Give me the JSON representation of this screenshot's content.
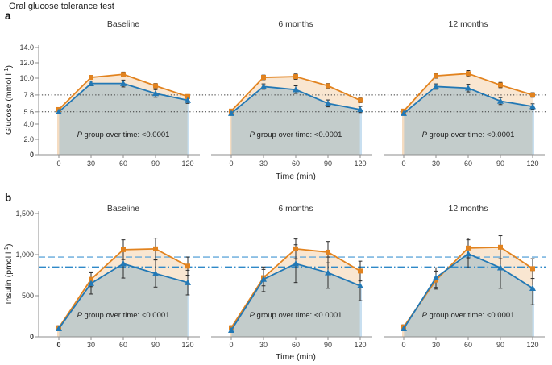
{
  "figure": {
    "title": "Oral glucose tolerance test"
  },
  "x_axis": {
    "label": "Time (min)",
    "values": [
      0,
      30,
      60,
      90,
      120
    ],
    "ticks": [
      "0",
      "30",
      "60",
      "90",
      "120"
    ]
  },
  "colors": {
    "orange": "#E2831F",
    "blue": "#2278B5",
    "area_orange": "#F9E6D1",
    "area_overlap": "#C3CCCB",
    "edge_left": "#F5DCC1",
    "edge_right": "#C8DFF0",
    "ref_dotted": "#3A3A3A",
    "ref_dashed": "#64A9DB",
    "ref_dashdot": "#2F89C8",
    "axis": "#8E8E8E",
    "error_bar": "#2B2B2B",
    "text": "#333333"
  },
  "chart_data": [
    {
      "type": "line",
      "row_label": "a",
      "ylabel": {
        "pre": "Glucose (mmol l",
        "sup": "-1",
        "post": ")"
      },
      "ylim": [
        0,
        14
      ],
      "yticks": [
        {
          "value": 0,
          "label": "0",
          "bold": true
        },
        {
          "value": 2,
          "label": "2.0"
        },
        {
          "value": 4,
          "label": "4.0"
        },
        {
          "value": 5.6,
          "label": "5.6"
        },
        {
          "value": 7.8,
          "label": "7.8"
        },
        {
          "value": 10,
          "label": "10.0"
        },
        {
          "value": 12,
          "label": "12.0"
        },
        {
          "value": 14,
          "label": "14.0"
        }
      ],
      "ref_lines": [
        {
          "value": 7.8,
          "style": "dotted"
        },
        {
          "value": 5.6,
          "style": "dotted"
        }
      ],
      "x_bold_zero_panels": [],
      "p_note": {
        "italic": "P",
        "rest": " group over time: <0.0001"
      },
      "panels": [
        {
          "title": "Baseline",
          "series": [
            {
              "name": "orange-squares",
              "color_key": "orange",
              "marker": "square",
              "values": [
                5.9,
                10.1,
                10.5,
                9.0,
                7.6
              ],
              "err": [
                0.2,
                0.25,
                0.3,
                0.3,
                0.25
              ]
            },
            {
              "name": "blue-triangles",
              "color_key": "blue",
              "marker": "triangle",
              "values": [
                5.6,
                9.3,
                9.3,
                8.0,
                7.1
              ],
              "err": [
                0.2,
                0.3,
                0.45,
                0.5,
                0.4
              ]
            }
          ]
        },
        {
          "title": "6 months",
          "series": [
            {
              "name": "orange-squares",
              "color_key": "orange",
              "marker": "square",
              "values": [
                5.7,
                10.1,
                10.2,
                9.0,
                7.1
              ],
              "err": [
                0.2,
                0.3,
                0.35,
                0.3,
                0.3
              ]
            },
            {
              "name": "blue-triangles",
              "color_key": "blue",
              "marker": "triangle",
              "values": [
                5.4,
                8.9,
                8.5,
                6.7,
                5.9
              ],
              "err": [
                0.25,
                0.35,
                0.5,
                0.45,
                0.4
              ]
            }
          ]
        },
        {
          "title": "12 months",
          "series": [
            {
              "name": "orange-squares",
              "color_key": "orange",
              "marker": "square",
              "values": [
                5.7,
                10.3,
                10.6,
                9.1,
                7.8
              ],
              "err": [
                0.2,
                0.3,
                0.4,
                0.35,
                0.3
              ]
            },
            {
              "name": "blue-triangles",
              "color_key": "blue",
              "marker": "triangle",
              "values": [
                5.4,
                8.9,
                8.7,
                7.0,
                6.3
              ],
              "err": [
                0.25,
                0.35,
                0.5,
                0.45,
                0.35
              ]
            }
          ]
        }
      ]
    },
    {
      "type": "line",
      "row_label": "b",
      "ylabel": {
        "pre": "Insulin (pmol l",
        "sup": "-1",
        "post": ")"
      },
      "ylim": [
        0,
        1500
      ],
      "yticks": [
        {
          "value": 0,
          "label": "0",
          "bold": true
        },
        {
          "value": 500,
          "label": "500"
        },
        {
          "value": 1000,
          "label": "1,000"
        },
        {
          "value": 1500,
          "label": "1,500"
        }
      ],
      "ref_lines": [
        {
          "value": 970,
          "style": "dashed"
        },
        {
          "value": 850,
          "style": "dashdot"
        }
      ],
      "x_bold_zero_panels": [
        0
      ],
      "p_note": {
        "italic": "P",
        "rest": " group over time: <0.0001"
      },
      "panels": [
        {
          "title": "Baseline",
          "series": [
            {
              "name": "orange-squares",
              "color_key": "orange",
              "marker": "square",
              "values": [
                110,
                700,
                1060,
                1070,
                860
              ],
              "err": [
                25,
                90,
                120,
                130,
                110
              ]
            },
            {
              "name": "blue-triangles",
              "color_key": "blue",
              "marker": "triangle",
              "values": [
                100,
                650,
                890,
                770,
                660
              ],
              "err": [
                25,
                130,
                175,
                165,
                150
              ]
            }
          ]
        },
        {
          "title": "6 months",
          "series": [
            {
              "name": "orange-squares",
              "color_key": "orange",
              "marker": "square",
              "values": [
                110,
                720,
                1070,
                1030,
                800
              ],
              "err": [
                25,
                100,
                120,
                130,
                120
              ]
            },
            {
              "name": "blue-triangles",
              "color_key": "blue",
              "marker": "triangle",
              "values": [
                80,
                700,
                890,
                780,
                620
              ],
              "err": [
                25,
                150,
                230,
                190,
                180
              ]
            }
          ]
        },
        {
          "title": "12 months",
          "series": [
            {
              "name": "orange-squares",
              "color_key": "orange",
              "marker": "square",
              "values": [
                120,
                690,
                1080,
                1090,
                830
              ],
              "err": [
                25,
                110,
                120,
                140,
                120
              ]
            },
            {
              "name": "blue-triangles",
              "color_key": "blue",
              "marker": "triangle",
              "values": [
                100,
                720,
                1010,
                840,
                590
              ],
              "err": [
                25,
                120,
                170,
                250,
                200
              ]
            }
          ]
        }
      ]
    }
  ]
}
